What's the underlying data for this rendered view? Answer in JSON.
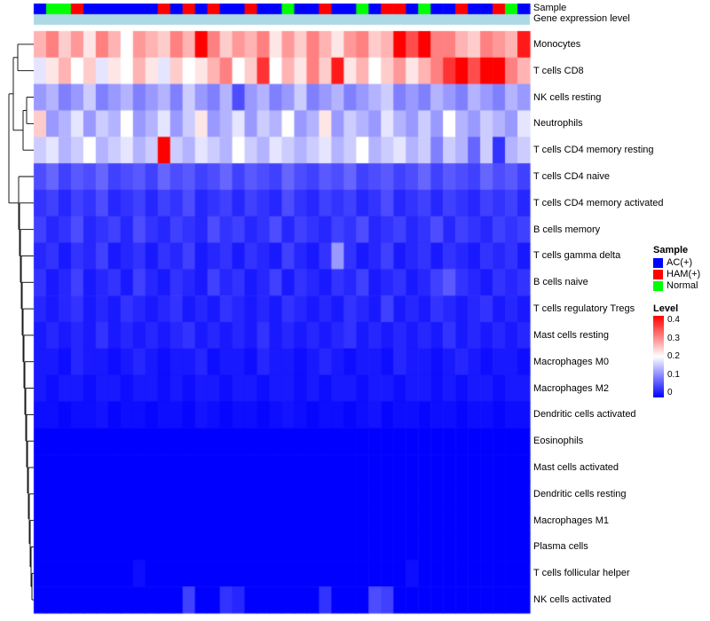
{
  "annotations": {
    "sample_label": "Sample",
    "gene_label": "Gene expression level"
  },
  "legend": {
    "sample_title": "Sample",
    "sample_items": [
      {
        "label": "AC(+)",
        "color": "#0000FF"
      },
      {
        "label": "HAM(+)",
        "color": "#FF0000"
      },
      {
        "label": "Normal",
        "color": "#00FF00"
      }
    ],
    "level_title": "Level",
    "level_ticks": [
      "0.4",
      "0.3",
      "0.2",
      "0.1",
      "0"
    ]
  },
  "chart_data": {
    "type": "heatmap",
    "title": "",
    "n_samples": 40,
    "value_range": [
      0,
      0.4
    ],
    "colormap": {
      "low": "#0000FF",
      "mid": "#FFFFFF",
      "high": "#FF0000",
      "mid_value": 0.2
    },
    "gene_expression_color": "#ADD8E6",
    "group_colors": {
      "AC": "#0000FF",
      "HAM": "#FF0000",
      "Normal": "#00FF00"
    },
    "sample_groups": [
      "AC",
      "Normal",
      "Normal",
      "HAM",
      "AC",
      "AC",
      "AC",
      "AC",
      "AC",
      "AC",
      "HAM",
      "AC",
      "HAM",
      "AC",
      "HAM",
      "AC",
      "AC",
      "HAM",
      "AC",
      "AC",
      "Normal",
      "AC",
      "AC",
      "HAM",
      "AC",
      "AC",
      "Normal",
      "AC",
      "HAM",
      "HAM",
      "AC",
      "Normal",
      "AC",
      "AC",
      "HAM",
      "AC",
      "AC",
      "HAM",
      "Normal",
      "AC"
    ],
    "rows": [
      "Monocytes",
      "T cells CD8",
      "NK cells resting",
      "Neutrophils",
      "T cells CD4 memory resting",
      "T cells CD4 naive",
      "T cells CD4 memory activated",
      "B cells memory",
      "T cells gamma delta",
      "B cells naive",
      "T cells regulatory Tregs",
      "Mast cells resting",
      "Macrophages M0",
      "Macrophages M2",
      "Dendritic cells activated",
      "Eosinophils",
      "Mast cells activated",
      "Dendritic cells resting",
      "Macrophages M1",
      "Plasma cells",
      "T cells follicular helper",
      "NK cells activated"
    ],
    "values": [
      [
        0.26,
        0.3,
        0.24,
        0.28,
        0.22,
        0.3,
        0.26,
        0.2,
        0.28,
        0.26,
        0.24,
        0.3,
        0.26,
        0.42,
        0.3,
        0.24,
        0.28,
        0.26,
        0.3,
        0.22,
        0.28,
        0.24,
        0.3,
        0.26,
        0.22,
        0.28,
        0.3,
        0.24,
        0.26,
        0.4,
        0.34,
        0.4,
        0.3,
        0.3,
        0.26,
        0.24,
        0.3,
        0.28,
        0.26,
        0.38
      ],
      [
        0.18,
        0.22,
        0.26,
        0.2,
        0.24,
        0.18,
        0.22,
        0.2,
        0.26,
        0.22,
        0.18,
        0.24,
        0.2,
        0.22,
        0.26,
        0.3,
        0.2,
        0.24,
        0.36,
        0.2,
        0.26,
        0.22,
        0.3,
        0.24,
        0.38,
        0.22,
        0.26,
        0.2,
        0.24,
        0.28,
        0.22,
        0.26,
        0.3,
        0.36,
        0.4,
        0.34,
        0.4,
        0.42,
        0.3,
        0.26
      ],
      [
        0.12,
        0.14,
        0.1,
        0.12,
        0.16,
        0.1,
        0.12,
        0.14,
        0.1,
        0.12,
        0.14,
        0.1,
        0.16,
        0.12,
        0.1,
        0.14,
        0.06,
        0.12,
        0.14,
        0.1,
        0.12,
        0.16,
        0.1,
        0.12,
        0.14,
        0.1,
        0.12,
        0.14,
        0.16,
        0.1,
        0.12,
        0.1,
        0.14,
        0.12,
        0.1,
        0.14,
        0.12,
        0.1,
        0.14,
        0.12
      ],
      [
        0.24,
        0.12,
        0.14,
        0.18,
        0.12,
        0.16,
        0.14,
        0.2,
        0.12,
        0.14,
        0.18,
        0.12,
        0.16,
        0.22,
        0.12,
        0.14,
        0.18,
        0.12,
        0.16,
        0.14,
        0.2,
        0.12,
        0.14,
        0.22,
        0.12,
        0.16,
        0.14,
        0.12,
        0.18,
        0.14,
        0.12,
        0.16,
        0.12,
        0.2,
        0.14,
        0.12,
        0.16,
        0.14,
        0.12,
        0.18
      ],
      [
        0.16,
        0.18,
        0.14,
        0.16,
        0.2,
        0.14,
        0.16,
        0.18,
        0.14,
        0.16,
        0.42,
        0.16,
        0.14,
        0.18,
        0.16,
        0.14,
        0.2,
        0.16,
        0.14,
        0.18,
        0.16,
        0.14,
        0.16,
        0.18,
        0.14,
        0.16,
        0.2,
        0.14,
        0.16,
        0.18,
        0.14,
        0.16,
        0.1,
        0.16,
        0.14,
        0.08,
        0.16,
        0.04,
        0.14,
        0.16
      ],
      [
        0.06,
        0.08,
        0.05,
        0.07,
        0.06,
        0.08,
        0.05,
        0.06,
        0.07,
        0.05,
        0.08,
        0.06,
        0.07,
        0.05,
        0.06,
        0.08,
        0.05,
        0.07,
        0.06,
        0.05,
        0.08,
        0.06,
        0.05,
        0.07,
        0.06,
        0.08,
        0.05,
        0.06,
        0.07,
        0.05,
        0.06,
        0.08,
        0.05,
        0.07,
        0.06,
        0.05,
        0.08,
        0.06,
        0.07,
        0.05
      ],
      [
        0.04,
        0.05,
        0.03,
        0.05,
        0.04,
        0.06,
        0.03,
        0.04,
        0.05,
        0.03,
        0.05,
        0.04,
        0.06,
        0.03,
        0.04,
        0.05,
        0.03,
        0.05,
        0.04,
        0.03,
        0.06,
        0.04,
        0.03,
        0.05,
        0.04,
        0.05,
        0.03,
        0.04,
        0.06,
        0.03,
        0.04,
        0.05,
        0.03,
        0.05,
        0.04,
        0.03,
        0.05,
        0.04,
        0.05,
        0.03
      ],
      [
        0.05,
        0.03,
        0.04,
        0.06,
        0.03,
        0.04,
        0.05,
        0.03,
        0.06,
        0.04,
        0.03,
        0.05,
        0.04,
        0.03,
        0.06,
        0.04,
        0.05,
        0.03,
        0.04,
        0.06,
        0.03,
        0.05,
        0.04,
        0.03,
        0.05,
        0.04,
        0.06,
        0.03,
        0.04,
        0.05,
        0.03,
        0.04,
        0.06,
        0.03,
        0.05,
        0.04,
        0.03,
        0.05,
        0.04,
        0.05
      ],
      [
        0.03,
        0.04,
        0.02,
        0.04,
        0.03,
        0.05,
        0.02,
        0.03,
        0.04,
        0.02,
        0.04,
        0.03,
        0.05,
        0.02,
        0.03,
        0.04,
        0.02,
        0.04,
        0.03,
        0.02,
        0.05,
        0.03,
        0.02,
        0.04,
        0.12,
        0.04,
        0.02,
        0.03,
        0.05,
        0.02,
        0.03,
        0.04,
        0.02,
        0.04,
        0.03,
        0.02,
        0.04,
        0.03,
        0.04,
        0.02
      ],
      [
        0.04,
        0.02,
        0.03,
        0.05,
        0.02,
        0.03,
        0.04,
        0.02,
        0.05,
        0.03,
        0.02,
        0.04,
        0.03,
        0.02,
        0.05,
        0.03,
        0.04,
        0.02,
        0.03,
        0.05,
        0.02,
        0.04,
        0.03,
        0.02,
        0.04,
        0.03,
        0.05,
        0.02,
        0.03,
        0.04,
        0.02,
        0.03,
        0.05,
        0.07,
        0.04,
        0.03,
        0.02,
        0.04,
        0.03,
        0.04
      ],
      [
        0.03,
        0.02,
        0.03,
        0.04,
        0.02,
        0.03,
        0.02,
        0.04,
        0.03,
        0.02,
        0.03,
        0.04,
        0.02,
        0.03,
        0.02,
        0.04,
        0.03,
        0.02,
        0.03,
        0.02,
        0.04,
        0.03,
        0.02,
        0.03,
        0.02,
        0.04,
        0.03,
        0.02,
        0.05,
        0.02,
        0.03,
        0.02,
        0.04,
        0.03,
        0.02,
        0.03,
        0.04,
        0.02,
        0.03,
        0.02
      ],
      [
        0.02,
        0.03,
        0.02,
        0.03,
        0.02,
        0.04,
        0.02,
        0.03,
        0.02,
        0.03,
        0.02,
        0.03,
        0.04,
        0.02,
        0.03,
        0.02,
        0.03,
        0.02,
        0.04,
        0.02,
        0.03,
        0.02,
        0.03,
        0.02,
        0.03,
        0.04,
        0.02,
        0.03,
        0.02,
        0.03,
        0.02,
        0.03,
        0.02,
        0.04,
        0.02,
        0.03,
        0.02,
        0.03,
        0.02,
        0.03
      ],
      [
        0.02,
        0.02,
        0.01,
        0.03,
        0.02,
        0.02,
        0.01,
        0.02,
        0.03,
        0.02,
        0.01,
        0.02,
        0.02,
        0.03,
        0.01,
        0.02,
        0.02,
        0.01,
        0.03,
        0.02,
        0.02,
        0.01,
        0.02,
        0.03,
        0.02,
        0.01,
        0.02,
        0.02,
        0.01,
        0.03,
        0.02,
        0.02,
        0.01,
        0.02,
        0.03,
        0.02,
        0.01,
        0.02,
        0.02,
        0.01
      ],
      [
        0.02,
        0.01,
        0.02,
        0.02,
        0.01,
        0.02,
        0.02,
        0.01,
        0.02,
        0.02,
        0.01,
        0.02,
        0.01,
        0.02,
        0.02,
        0.01,
        0.02,
        0.02,
        0.01,
        0.02,
        0.02,
        0.01,
        0.02,
        0.01,
        0.02,
        0.02,
        0.01,
        0.02,
        0.02,
        0.01,
        0.02,
        0.02,
        0.01,
        0.02,
        0.01,
        0.02,
        0.02,
        0.01,
        0.02,
        0.02
      ],
      [
        0.01,
        0.01,
        0.005,
        0.01,
        0.01,
        0.015,
        0.005,
        0.01,
        0.01,
        0.005,
        0.01,
        0.01,
        0.005,
        0.015,
        0.01,
        0.005,
        0.01,
        0.01,
        0.005,
        0.01,
        0.015,
        0.01,
        0.005,
        0.01,
        0.01,
        0.005,
        0.01,
        0.015,
        0.005,
        0.01,
        0.01,
        0.005,
        0.01,
        0.01,
        0.005,
        0.01,
        0.01,
        0.005,
        0.01,
        0.01
      ],
      [
        0,
        0,
        0,
        0,
        0,
        0,
        0,
        0,
        0,
        0,
        0,
        0,
        0,
        0,
        0,
        0,
        0,
        0,
        0,
        0,
        0,
        0,
        0,
        0,
        0,
        0,
        0,
        0,
        0,
        0,
        0,
        0,
        0,
        0,
        0,
        0,
        0,
        0,
        0,
        0
      ],
      [
        0,
        0,
        0,
        0,
        0,
        0,
        0,
        0,
        0,
        0,
        0,
        0,
        0,
        0,
        0,
        0,
        0,
        0,
        0,
        0,
        0,
        0,
        0,
        0,
        0,
        0,
        0,
        0,
        0,
        0,
        0,
        0,
        0,
        0,
        0,
        0,
        0,
        0,
        0,
        0
      ],
      [
        0,
        0,
        0,
        0,
        0,
        0,
        0,
        0,
        0,
        0,
        0,
        0,
        0,
        0,
        0,
        0,
        0,
        0,
        0,
        0,
        0,
        0,
        0,
        0,
        0,
        0,
        0,
        0,
        0,
        0,
        0,
        0,
        0,
        0,
        0,
        0,
        0,
        0,
        0,
        0
      ],
      [
        0,
        0,
        0,
        0,
        0,
        0,
        0,
        0,
        0,
        0,
        0,
        0,
        0,
        0,
        0,
        0,
        0,
        0,
        0,
        0,
        0,
        0,
        0,
        0,
        0,
        0,
        0,
        0,
        0,
        0,
        0,
        0,
        0,
        0,
        0,
        0,
        0,
        0,
        0,
        0
      ],
      [
        0,
        0,
        0,
        0,
        0,
        0,
        0,
        0,
        0,
        0,
        0,
        0,
        0,
        0,
        0,
        0,
        0,
        0,
        0,
        0,
        0,
        0,
        0,
        0,
        0,
        0,
        0,
        0,
        0,
        0,
        0,
        0,
        0,
        0,
        0,
        0,
        0,
        0,
        0,
        0
      ],
      [
        0,
        0,
        0,
        0,
        0,
        0,
        0,
        0,
        0.01,
        0,
        0,
        0,
        0,
        0,
        0,
        0,
        0,
        0,
        0,
        0,
        0,
        0,
        0,
        0,
        0,
        0,
        0,
        0,
        0,
        0,
        0.01,
        0,
        0,
        0,
        0,
        0,
        0,
        0,
        0,
        0
      ],
      [
        0,
        0,
        0,
        0,
        0,
        0,
        0,
        0,
        0,
        0,
        0,
        0,
        0.05,
        0,
        0,
        0.04,
        0.03,
        0,
        0,
        0,
        0,
        0,
        0,
        0.04,
        0,
        0,
        0,
        0.06,
        0.05,
        0,
        0,
        0,
        0,
        0,
        0,
        0,
        0,
        0,
        0,
        0
      ]
    ]
  }
}
